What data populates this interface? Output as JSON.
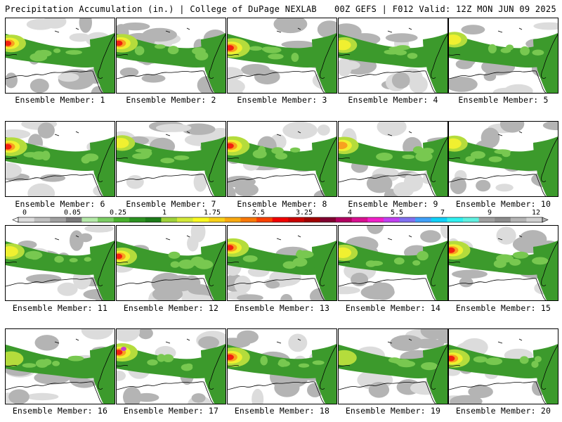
{
  "header": {
    "left": "Precipitation Accumulation (in.) | College of DuPage NEXLAB",
    "right": "00Z GEFS | F012 Valid: 12Z MON JUN 09 2025"
  },
  "colorbar": {
    "labels": [
      "0",
      "0.05",
      "0.25",
      "1",
      "1.75",
      "2.5",
      "3.25",
      "4",
      "5.5",
      "7",
      "9",
      "12"
    ],
    "colors": [
      "#dcdcdc",
      "#bebebe",
      "#a0a0a0",
      "#7a7a7a",
      "#b4e8a8",
      "#7ccc64",
      "#48b02c",
      "#2b9120",
      "#1c7a18",
      "#9fd23a",
      "#d2e838",
      "#f8f820",
      "#f8d018",
      "#f8a810",
      "#f87808",
      "#f84000",
      "#f00000",
      "#c80000",
      "#a00000",
      "#800030",
      "#b00060",
      "#d81090",
      "#f020c8",
      "#c040f0",
      "#8070f0",
      "#40a0f8",
      "#10d0f8",
      "#30f0f0",
      "#60f0e0",
      "#a0a0a0",
      "#8c8c8c",
      "#b4b4b4",
      "#d0d0d0"
    ]
  },
  "panels": [
    {
      "label": "Ensemble Member: 1"
    },
    {
      "label": "Ensemble Member: 2"
    },
    {
      "label": "Ensemble Member: 3"
    },
    {
      "label": "Ensemble Member: 4"
    },
    {
      "label": "Ensemble Member: 5"
    },
    {
      "label": "Ensemble Member: 6"
    },
    {
      "label": "Ensemble Member: 7"
    },
    {
      "label": "Ensemble Member: 8"
    },
    {
      "label": "Ensemble Member: 9"
    },
    {
      "label": "Ensemble Member: 10"
    },
    {
      "label": "Ensemble Member: 11"
    },
    {
      "label": "Ensemble Member: 12"
    },
    {
      "label": "Ensemble Member: 13"
    },
    {
      "label": "Ensemble Member: 14"
    },
    {
      "label": "Ensemble Member: 15"
    },
    {
      "label": "Ensemble Member: 16"
    },
    {
      "label": "Ensemble Member: 17"
    },
    {
      "label": "Ensemble Member: 18"
    },
    {
      "label": "Ensemble Member: 19"
    },
    {
      "label": "Ensemble Member: 20"
    }
  ],
  "colors": {
    "light_gray": "#dcdcdc",
    "mid_gray": "#b4b4b4",
    "green": "#3c9a2c",
    "light_green": "#78c850",
    "yellow_green": "#b4dc3c",
    "yellow": "#f0f030",
    "orange": "#f8a020",
    "red": "#f02010",
    "magenta": "#c83cc8",
    "border": "#000000"
  }
}
